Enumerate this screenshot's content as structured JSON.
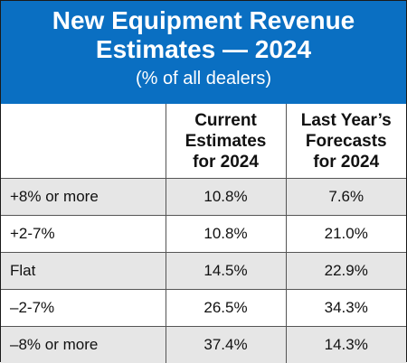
{
  "chart_data": {
    "type": "table",
    "title": [
      "New Equipment Revenue",
      "Estimates — 2024"
    ],
    "subtitle": "(% of all dealers)",
    "columns": [
      "",
      [
        "Current",
        "Estimates",
        "for 2024"
      ],
      [
        "Last Year’s",
        "Forecasts",
        "for 2024"
      ]
    ],
    "rows": [
      {
        "label": "+8% or more",
        "current": "10.8%",
        "last_year": "7.6%"
      },
      {
        "label": "+2-7%",
        "current": "10.8%",
        "last_year": "21.0%"
      },
      {
        "label": "Flat",
        "current": "14.5%",
        "last_year": "22.9%"
      },
      {
        "label": "–2-7%",
        "current": "26.5%",
        "last_year": "34.3%"
      },
      {
        "label": "–8% or more",
        "current": "37.4%",
        "last_year": "14.3%"
      }
    ]
  },
  "colors": {
    "header_band": "#0a6fc2",
    "row_shade": "#e6e6e6",
    "grid": "#555555"
  }
}
